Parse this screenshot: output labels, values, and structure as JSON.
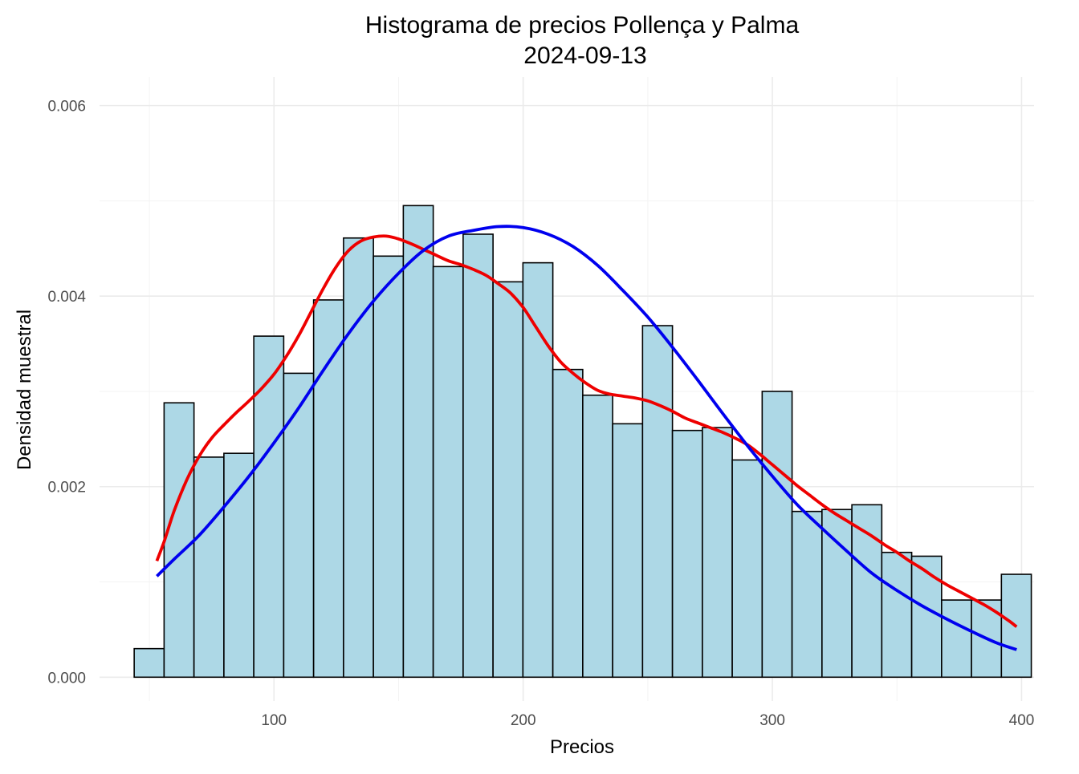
{
  "chart_data": {
    "type": "histogram",
    "title": [
      "Histograma de precios Pollença y Palma",
      "2024-09-13"
    ],
    "xlabel": "Precios",
    "ylabel": "Densidad muestral",
    "xlim": [
      30,
      405
    ],
    "ylim": [
      -0.00025,
      0.0063
    ],
    "x_ticks": [
      100,
      200,
      300,
      400
    ],
    "x_tick_labels": [
      "100",
      "200",
      "300",
      "400"
    ],
    "y_ticks": [
      0,
      0.002,
      0.004,
      0.006
    ],
    "y_tick_labels": [
      "0.000",
      "0.002",
      "0.004",
      "0.006"
    ],
    "x_minor_ticks": [
      50,
      150,
      250,
      350
    ],
    "y_minor_ticks": [
      0.001,
      0.003,
      0.005
    ],
    "grid": true,
    "bar_fill": "#add8e6",
    "bar_outline": "#000000",
    "bin_width": 12,
    "bins": [
      {
        "start": 43.9,
        "density": 0.0003
      },
      {
        "start": 55.9,
        "density": 0.00288
      },
      {
        "start": 67.9,
        "density": 0.00231
      },
      {
        "start": 79.9,
        "density": 0.00235
      },
      {
        "start": 91.9,
        "density": 0.00358
      },
      {
        "start": 103.9,
        "density": 0.00319
      },
      {
        "start": 115.9,
        "density": 0.00396
      },
      {
        "start": 127.9,
        "density": 0.00461
      },
      {
        "start": 139.9,
        "density": 0.00442
      },
      {
        "start": 151.9,
        "density": 0.00495
      },
      {
        "start": 163.9,
        "density": 0.00431
      },
      {
        "start": 175.9,
        "density": 0.00465
      },
      {
        "start": 187.9,
        "density": 0.00415
      },
      {
        "start": 199.9,
        "density": 0.00435
      },
      {
        "start": 211.9,
        "density": 0.00323
      },
      {
        "start": 223.9,
        "density": 0.00296
      },
      {
        "start": 235.9,
        "density": 0.00266
      },
      {
        "start": 247.9,
        "density": 0.00369
      },
      {
        "start": 259.9,
        "density": 0.00259
      },
      {
        "start": 271.9,
        "density": 0.00262
      },
      {
        "start": 283.9,
        "density": 0.00228
      },
      {
        "start": 295.9,
        "density": 0.003
      },
      {
        "start": 307.9,
        "density": 0.00174
      },
      {
        "start": 319.9,
        "density": 0.00176
      },
      {
        "start": 331.9,
        "density": 0.00181
      },
      {
        "start": 343.9,
        "density": 0.00131
      },
      {
        "start": 355.9,
        "density": 0.00127
      },
      {
        "start": 367.9,
        "density": 0.00081
      },
      {
        "start": 379.9,
        "density": 0.00081
      },
      {
        "start": 391.9,
        "density": 0.00108
      }
    ],
    "series": [
      {
        "color": "#ee0000",
        "x": [
          53,
          56,
          60,
          65,
          70,
          75,
          80,
          85,
          90,
          95,
          100,
          105,
          110,
          115,
          120,
          125,
          130,
          135,
          140,
          145,
          150,
          155,
          160,
          165,
          170,
          175,
          180,
          185,
          190,
          195,
          200,
          205,
          210,
          215,
          220,
          225,
          230,
          235,
          240,
          245,
          250,
          255,
          260,
          265,
          270,
          275,
          280,
          285,
          290,
          295,
          300,
          305,
          310,
          315,
          320,
          325,
          330,
          335,
          340,
          345,
          350,
          355,
          360,
          365,
          370,
          375,
          380,
          385,
          390,
          395,
          398
        ],
        "y": [
          0.00122,
          0.00143,
          0.00175,
          0.00207,
          0.00232,
          0.00251,
          0.00265,
          0.00278,
          0.0029,
          0.00303,
          0.00318,
          0.00337,
          0.00359,
          0.00384,
          0.00409,
          0.00431,
          0.00448,
          0.00458,
          0.00462,
          0.00463,
          0.0046,
          0.00455,
          0.00449,
          0.00443,
          0.00437,
          0.00433,
          0.00428,
          0.00422,
          0.00413,
          0.00403,
          0.00388,
          0.00368,
          0.00348,
          0.00331,
          0.00319,
          0.00309,
          0.00301,
          0.00297,
          0.00295,
          0.00293,
          0.0029,
          0.00285,
          0.00279,
          0.00272,
          0.00267,
          0.00262,
          0.00257,
          0.00251,
          0.00244,
          0.00234,
          0.00223,
          0.00212,
          0.00201,
          0.00191,
          0.00181,
          0.00172,
          0.00164,
          0.00156,
          0.00148,
          0.00139,
          0.00131,
          0.00122,
          0.00114,
          0.00105,
          0.00097,
          0.0009,
          0.00083,
          0.00076,
          0.00068,
          0.00059,
          0.00053
        ]
      },
      {
        "color": "#0000ee",
        "x": [
          53,
          60,
          70,
          80,
          90,
          100,
          110,
          120,
          130,
          140,
          150,
          160,
          170,
          180,
          190,
          200,
          210,
          220,
          230,
          240,
          250,
          260,
          270,
          280,
          290,
          300,
          310,
          320,
          330,
          340,
          350,
          360,
          370,
          380,
          390,
          398
        ],
        "y": [
          0.00106,
          0.00124,
          0.00149,
          0.00179,
          0.00211,
          0.00246,
          0.00283,
          0.00323,
          0.00361,
          0.00395,
          0.00424,
          0.00448,
          0.00463,
          0.00469,
          0.00473,
          0.00472,
          0.00465,
          0.00452,
          0.00432,
          0.00406,
          0.00378,
          0.00346,
          0.00312,
          0.00277,
          0.00243,
          0.00211,
          0.00181,
          0.00156,
          0.00132,
          0.00109,
          0.00091,
          0.00075,
          0.00061,
          0.00048,
          0.00036,
          0.00029
        ]
      }
    ]
  }
}
